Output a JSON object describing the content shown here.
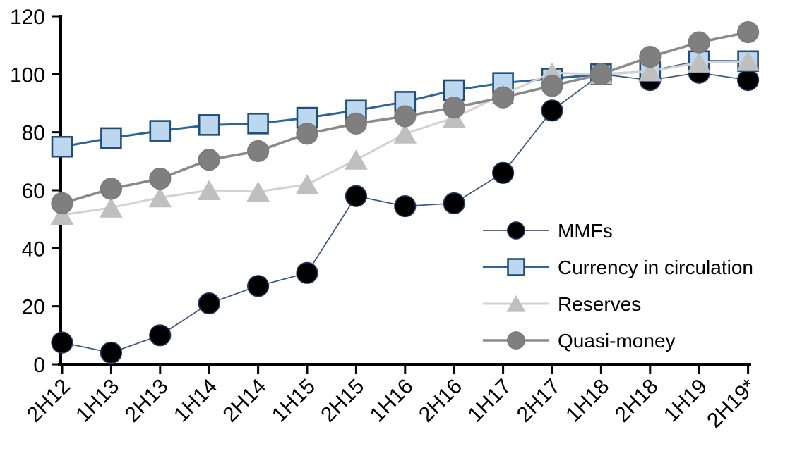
{
  "chart_data": {
    "type": "line",
    "title": "",
    "xlabel": "",
    "ylabel": "",
    "categories": [
      "2H12",
      "1H13",
      "2H13",
      "1H14",
      "2H14",
      "1H15",
      "2H15",
      "1H16",
      "2H16",
      "1H17",
      "2H17",
      "1H18",
      "2H18",
      "1H19",
      "2H19*"
    ],
    "series": [
      {
        "id": "mmfs",
        "name": "MMFs",
        "marker": "circle",
        "line_color": "#3c5680",
        "line_width": 1.7,
        "fill": "#000000",
        "edge": "#1f3864",
        "values": [
          7.5,
          4,
          10,
          21,
          27,
          31.5,
          58,
          54.5,
          55.5,
          66,
          87.5,
          100,
          98,
          100.5,
          98
        ]
      },
      {
        "id": "currency",
        "name": "Currency in circulation",
        "marker": "square",
        "line_color": "#2d6398",
        "line_width": 3,
        "fill": "#bdd7ee",
        "edge": "#1f4e79",
        "values": [
          75,
          78,
          80.5,
          82.5,
          83,
          85,
          87.5,
          90.5,
          94.5,
          97,
          98.5,
          100,
          101,
          104.5,
          104.5
        ]
      },
      {
        "id": "reserves",
        "name": "Reserves",
        "marker": "triangle",
        "line_color": "#d2d2d2",
        "line_width": 3,
        "fill": "#bfbfbf",
        "edge": "#bfbfbf",
        "values": [
          51.5,
          54,
          57.5,
          60,
          59.5,
          62,
          70.5,
          79.5,
          85,
          93,
          100.5,
          100,
          101,
          104,
          104.5
        ]
      },
      {
        "id": "quasi",
        "name": "Quasi-money",
        "marker": "circle",
        "line_color": "#8a8a8a",
        "line_width": 3.6,
        "fill": "#7f7f7f",
        "edge": "#7a7a7a",
        "values": [
          55.5,
          60.5,
          64,
          70.5,
          73.5,
          79.5,
          83,
          85.5,
          88.5,
          92,
          96,
          100,
          106,
          111,
          114.5
        ]
      }
    ],
    "ylim": [
      0,
      120
    ],
    "yticks": [
      0,
      20,
      40,
      60,
      80,
      100,
      120
    ],
    "grid": false,
    "legend": {
      "position": "inside-right",
      "items": [
        "MMFs",
        "Currency in circulation",
        "Reserves",
        "Quasi-money"
      ]
    },
    "axis_color": "#000000",
    "text_color": "#000000",
    "background": "#ffffff"
  }
}
